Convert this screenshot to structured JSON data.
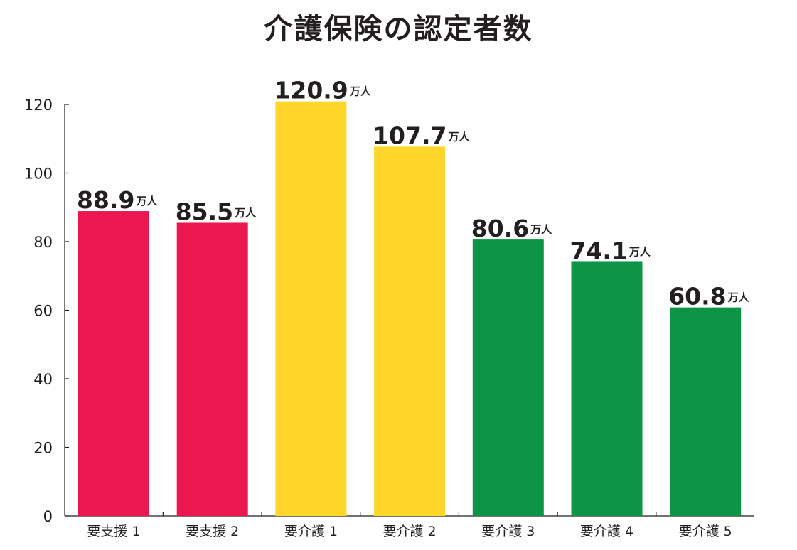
{
  "chart_data": {
    "type": "bar",
    "title": "介護保険の認定者数",
    "xlabel": "",
    "ylabel": "",
    "categories": [
      "要支援 1",
      "要支援 2",
      "要介護 1",
      "要介護 2",
      "要介護 3",
      "要介護 4",
      "要介護 5"
    ],
    "values": [
      88.9,
      85.5,
      120.9,
      107.7,
      80.6,
      74.1,
      60.8
    ],
    "value_labels": [
      "88.9",
      "85.5",
      "120.9",
      "107.7",
      "80.6",
      "74.1",
      "60.8"
    ],
    "value_unit": "万人",
    "bar_colors": [
      "#ed174f",
      "#ed174f",
      "#fed72a",
      "#fed72a",
      "#0d9446",
      "#0d9446",
      "#0d9446"
    ],
    "yticks": [
      0,
      20,
      40,
      60,
      80,
      100,
      120
    ],
    "ylim": [
      0,
      120
    ],
    "grid": false,
    "legend": "none"
  }
}
